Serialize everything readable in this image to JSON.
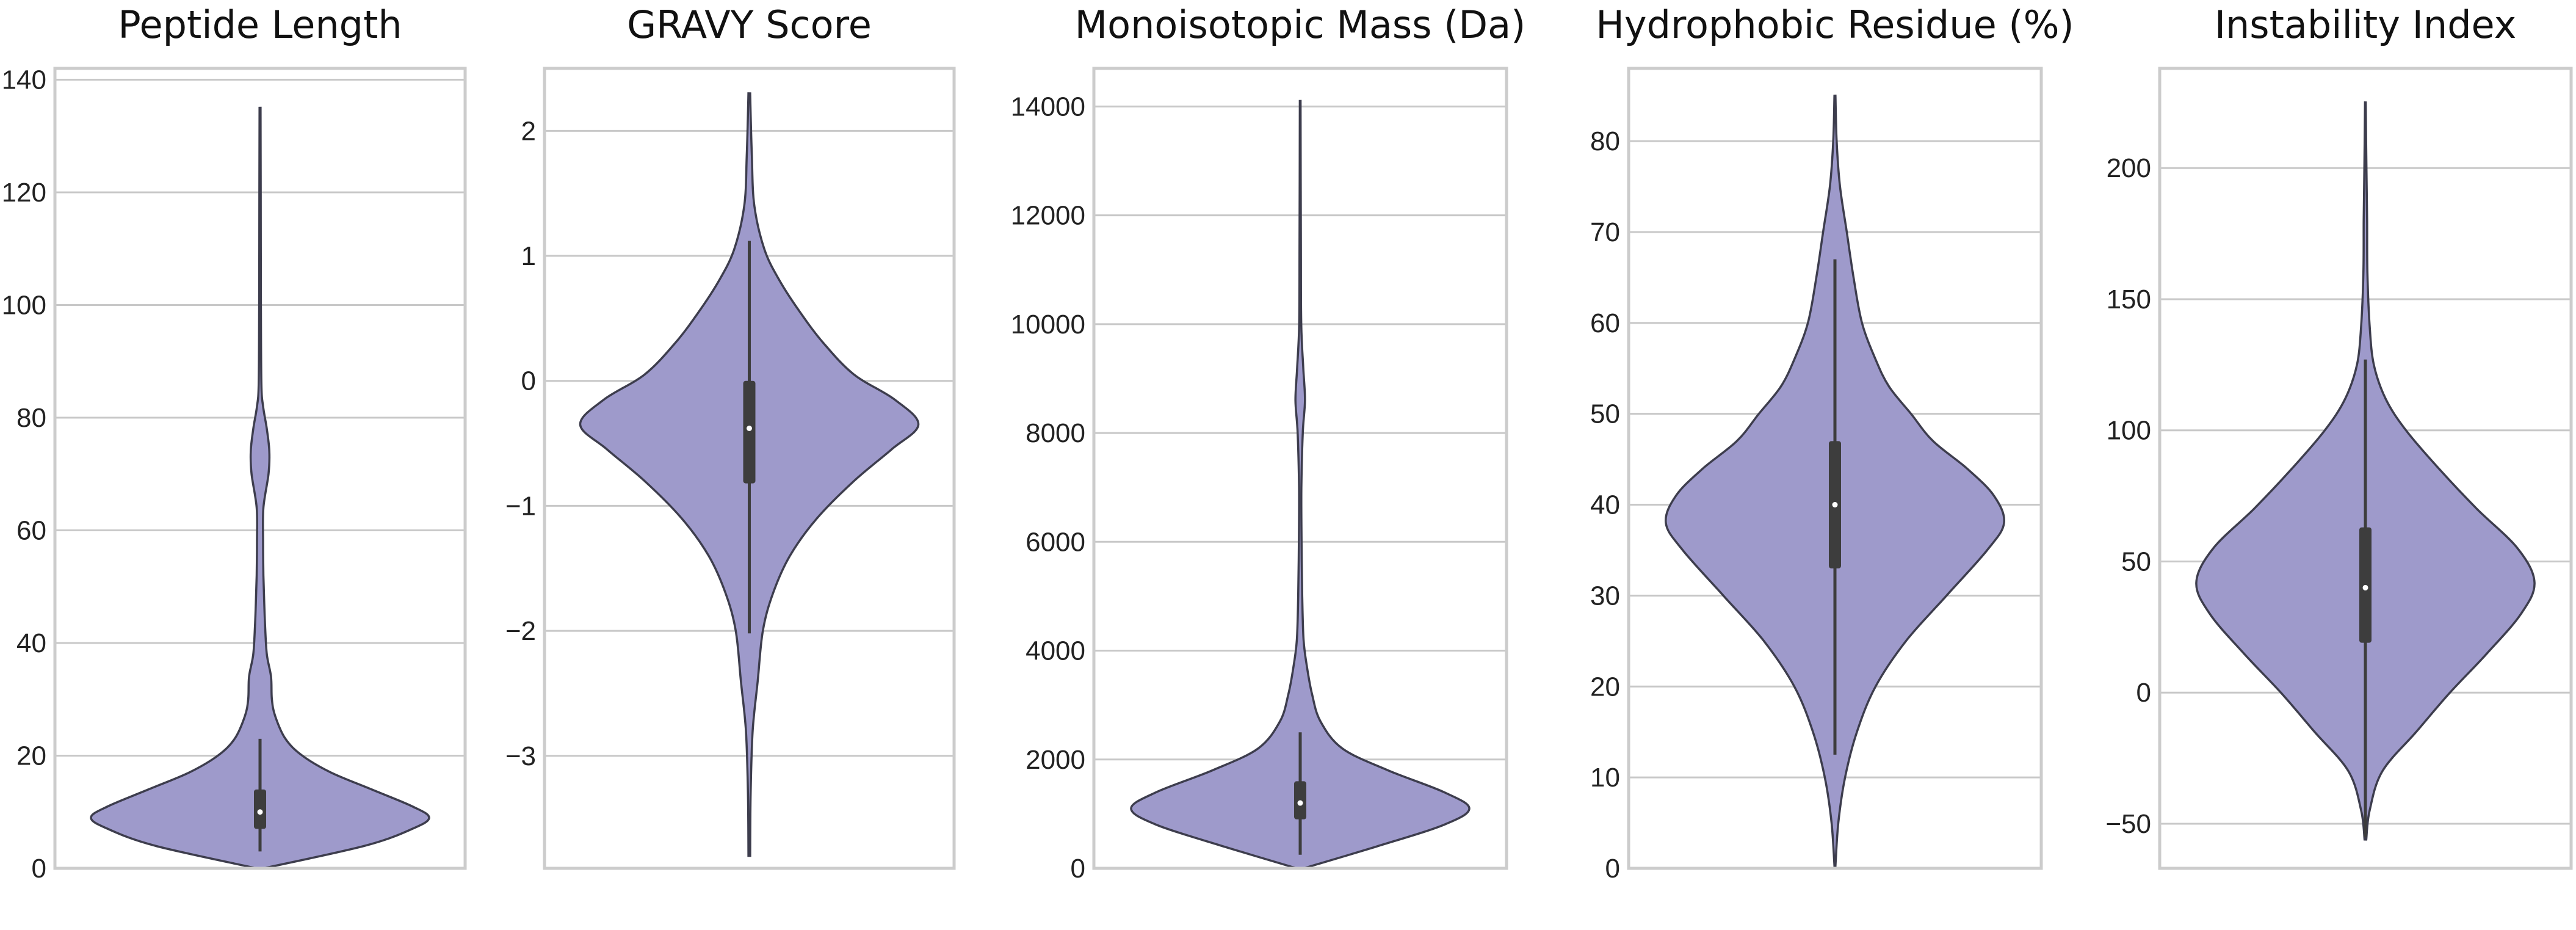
{
  "chart_data": {
    "type": "violin",
    "violin_color": "#9e9acb",
    "grid": true,
    "panels": [
      {
        "title": "Peptide Length",
        "ylim": [
          0,
          142
        ],
        "yticks": [
          0,
          20,
          40,
          60,
          80,
          100,
          120,
          140
        ],
        "density": [
          [
            0,
            0.02
          ],
          [
            4,
            0.62
          ],
          [
            7,
            0.9
          ],
          [
            9,
            1.0
          ],
          [
            11,
            0.9
          ],
          [
            14,
            0.66
          ],
          [
            17,
            0.42
          ],
          [
            20,
            0.25
          ],
          [
            23,
            0.15
          ],
          [
            27,
            0.09
          ],
          [
            30,
            0.07
          ],
          [
            34,
            0.065
          ],
          [
            38,
            0.04
          ],
          [
            43,
            0.03
          ],
          [
            47,
            0.025
          ],
          [
            52,
            0.02
          ],
          [
            58,
            0.018
          ],
          [
            64,
            0.02
          ],
          [
            70,
            0.05
          ],
          [
            74,
            0.055
          ],
          [
            78,
            0.04
          ],
          [
            82,
            0.018
          ],
          [
            86,
            0.008
          ],
          [
            100,
            0.005
          ],
          [
            120,
            0.004
          ],
          [
            135,
            0.003
          ]
        ],
        "box": {
          "whisker_low": 3,
          "q1": 7,
          "median": 10,
          "q3": 14,
          "whisker_high": 23
        }
      },
      {
        "title": "GRAVY Score",
        "ylim": [
          -3.9,
          2.5
        ],
        "yticks": [
          -3,
          -2,
          -1,
          0,
          1,
          2
        ],
        "density": [
          [
            -3.8,
            0.005
          ],
          [
            -3.3,
            0.008
          ],
          [
            -2.8,
            0.02
          ],
          [
            -2.4,
            0.05
          ],
          [
            -2.0,
            0.08
          ],
          [
            -1.7,
            0.14
          ],
          [
            -1.4,
            0.24
          ],
          [
            -1.1,
            0.4
          ],
          [
            -0.8,
            0.62
          ],
          [
            -0.55,
            0.84
          ],
          [
            -0.35,
            1.0
          ],
          [
            -0.15,
            0.86
          ],
          [
            0.05,
            0.62
          ],
          [
            0.3,
            0.44
          ],
          [
            0.55,
            0.3
          ],
          [
            0.8,
            0.18
          ],
          [
            1.05,
            0.09
          ],
          [
            1.4,
            0.03
          ],
          [
            1.8,
            0.015
          ],
          [
            2.3,
            0.005
          ]
        ],
        "box": {
          "whisker_low": -2.02,
          "q1": -0.82,
          "median": -0.38,
          "q3": 0.0,
          "whisker_high": 1.12
        }
      },
      {
        "title": "Monoisotopic Mass (Da)",
        "ylim": [
          0,
          14700
        ],
        "yticks": [
          0,
          2000,
          4000,
          6000,
          8000,
          10000,
          12000,
          14000
        ],
        "density": [
          [
            0,
            0.02
          ],
          [
            400,
            0.45
          ],
          [
            800,
            0.85
          ],
          [
            1100,
            1.0
          ],
          [
            1400,
            0.85
          ],
          [
            1800,
            0.52
          ],
          [
            2200,
            0.25
          ],
          [
            2700,
            0.12
          ],
          [
            3200,
            0.07
          ],
          [
            3700,
            0.04
          ],
          [
            4200,
            0.02
          ],
          [
            5000,
            0.012
          ],
          [
            6000,
            0.008
          ],
          [
            7000,
            0.007
          ],
          [
            8000,
            0.015
          ],
          [
            8600,
            0.028
          ],
          [
            9200,
            0.018
          ],
          [
            10000,
            0.006
          ],
          [
            11500,
            0.004
          ],
          [
            14100,
            0.002
          ]
        ],
        "box": {
          "whisker_low": 250,
          "q1": 900,
          "median": 1200,
          "q3": 1600,
          "whisker_high": 2500
        }
      },
      {
        "title": "Hydrophobic Residue (%)",
        "ylim": [
          0,
          88
        ],
        "yticks": [
          0,
          10,
          20,
          30,
          40,
          50,
          60,
          70,
          80
        ],
        "density": [
          [
            0,
            0.002
          ],
          [
            5,
            0.02
          ],
          [
            10,
            0.06
          ],
          [
            15,
            0.13
          ],
          [
            20,
            0.24
          ],
          [
            25,
            0.42
          ],
          [
            30,
            0.66
          ],
          [
            35,
            0.9
          ],
          [
            38,
            1.0
          ],
          [
            41,
            0.94
          ],
          [
            44,
            0.78
          ],
          [
            47,
            0.58
          ],
          [
            50,
            0.45
          ],
          [
            53,
            0.32
          ],
          [
            56,
            0.24
          ],
          [
            60,
            0.16
          ],
          [
            65,
            0.11
          ],
          [
            70,
            0.07
          ],
          [
            75,
            0.03
          ],
          [
            80,
            0.01
          ],
          [
            85,
            0.003
          ]
        ],
        "box": {
          "whisker_low": 12.5,
          "q1": 33,
          "median": 40,
          "q3": 47,
          "whisker_high": 67
        }
      },
      {
        "title": "Instability Index",
        "ylim": [
          -67,
          238
        ],
        "yticks": [
          -50,
          0,
          50,
          100,
          150,
          200
        ],
        "density": [
          [
            -56,
            0.005
          ],
          [
            -45,
            0.025
          ],
          [
            -30,
            0.1
          ],
          [
            -15,
            0.3
          ],
          [
            0,
            0.5
          ],
          [
            15,
            0.72
          ],
          [
            30,
            0.92
          ],
          [
            42,
            1.0
          ],
          [
            55,
            0.9
          ],
          [
            70,
            0.66
          ],
          [
            85,
            0.44
          ],
          [
            100,
            0.24
          ],
          [
            112,
            0.12
          ],
          [
            125,
            0.05
          ],
          [
            140,
            0.025
          ],
          [
            160,
            0.012
          ],
          [
            180,
            0.01
          ],
          [
            200,
            0.006
          ],
          [
            225,
            0.002
          ]
        ],
        "box": {
          "whisker_low": -55,
          "q1": 19,
          "median": 40,
          "q3": 63,
          "whisker_high": 127
        }
      }
    ]
  }
}
